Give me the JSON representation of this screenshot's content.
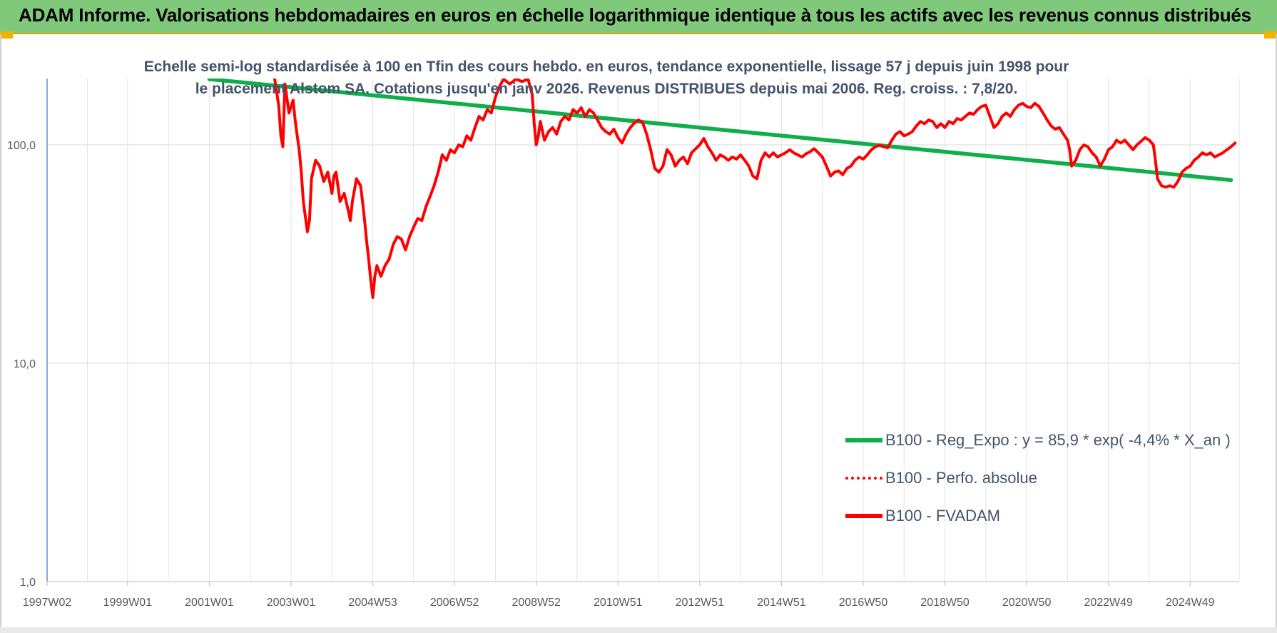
{
  "header": {
    "title": "ADAM Informe. Valorisations hebdomadaires en euros en échelle logarithmique identique à tous les actifs avec les revenus connus distribués"
  },
  "colors": {
    "banner": "#80c97a",
    "accent": "#f0b400",
    "trend": "#0fae4b",
    "price": "#ff0000",
    "text": "#44546a"
  },
  "chart_data": {
    "type": "line",
    "title": "Echelle semi-log standardisée à 100 en Tfin des cours hebdo. en euros, tendance exponentielle, lissage 57 j depuis juin 1998 pour le placement Alstom SA. Cotations jusqu'en janv 2026. Revenus DISTRIBUES depuis mai 2006. Reg. croiss. : 7,8/20.",
    "y_scale": "log",
    "ylim": [
      1,
      200
    ],
    "xlim": [
      1997.03,
      2026.2
    ],
    "y_ticks": [
      {
        "value": 1,
        "label": "1,0"
      },
      {
        "value": 10,
        "label": "10,0"
      },
      {
        "value": 100,
        "label": "100,0"
      }
    ],
    "x_ticks": [
      {
        "value": 1997.03,
        "label": "1997W02"
      },
      {
        "value": 1999.0,
        "label": "1999W01"
      },
      {
        "value": 2001.0,
        "label": "2001W01"
      },
      {
        "value": 2003.0,
        "label": "2003W01"
      },
      {
        "value": 2005.0,
        "label": "2004W53"
      },
      {
        "value": 2007.0,
        "label": "2006W52"
      },
      {
        "value": 2009.0,
        "label": "2008W52"
      },
      {
        "value": 2011.0,
        "label": "2010W51"
      },
      {
        "value": 2013.0,
        "label": "2012W51"
      },
      {
        "value": 2015.0,
        "label": "2014W51"
      },
      {
        "value": 2017.0,
        "label": "2016W50"
      },
      {
        "value": 2019.0,
        "label": "2018W50"
      },
      {
        "value": 2021.0,
        "label": "2020W50"
      },
      {
        "value": 2023.0,
        "label": "2022W49"
      },
      {
        "value": 2025.0,
        "label": "2024W49"
      }
    ],
    "grid": true,
    "legend_position": "bottom-right",
    "series": [
      {
        "name": "B100 - Reg_Expo : y = 85,9 * exp( -4,4% *  X_an )",
        "style": "solid",
        "color": "#0fae4b",
        "points": [
          [
            2001.0,
            200
          ],
          [
            2026.0,
            69
          ]
        ]
      },
      {
        "name": "B100 - Perfo. absolue",
        "style": "dotted",
        "color": "#ff0000",
        "points": []
      },
      {
        "name": "B100 - FVADAM",
        "style": "solid",
        "color": "#ff0000",
        "points": [
          [
            2002.6,
            200
          ],
          [
            2002.7,
            150
          ],
          [
            2002.75,
            110
          ],
          [
            2002.8,
            98
          ],
          [
            2002.85,
            190
          ],
          [
            2002.95,
            140
          ],
          [
            2003.05,
            160
          ],
          [
            2003.1,
            130
          ],
          [
            2003.15,
            110
          ],
          [
            2003.2,
            95
          ],
          [
            2003.25,
            75
          ],
          [
            2003.3,
            55
          ],
          [
            2003.4,
            40
          ],
          [
            2003.45,
            45
          ],
          [
            2003.5,
            70
          ],
          [
            2003.6,
            85
          ],
          [
            2003.7,
            80
          ],
          [
            2003.8,
            68
          ],
          [
            2003.9,
            75
          ],
          [
            2004.0,
            60
          ],
          [
            2004.05,
            72
          ],
          [
            2004.1,
            75
          ],
          [
            2004.2,
            55
          ],
          [
            2004.3,
            60
          ],
          [
            2004.4,
            50
          ],
          [
            2004.45,
            45
          ],
          [
            2004.5,
            55
          ],
          [
            2004.55,
            62
          ],
          [
            2004.6,
            70
          ],
          [
            2004.7,
            65
          ],
          [
            2004.75,
            55
          ],
          [
            2004.8,
            45
          ],
          [
            2004.85,
            36
          ],
          [
            2004.9,
            30
          ],
          [
            2004.95,
            24
          ],
          [
            2005.0,
            20
          ],
          [
            2005.05,
            25
          ],
          [
            2005.1,
            28
          ],
          [
            2005.2,
            25
          ],
          [
            2005.3,
            28
          ],
          [
            2005.4,
            30
          ],
          [
            2005.5,
            35
          ],
          [
            2005.6,
            38
          ],
          [
            2005.7,
            37
          ],
          [
            2005.8,
            33
          ],
          [
            2005.9,
            38
          ],
          [
            2006.0,
            42
          ],
          [
            2006.1,
            46
          ],
          [
            2006.2,
            45
          ],
          [
            2006.3,
            52
          ],
          [
            2006.4,
            58
          ],
          [
            2006.5,
            65
          ],
          [
            2006.6,
            75
          ],
          [
            2006.7,
            90
          ],
          [
            2006.8,
            85
          ],
          [
            2006.9,
            95
          ],
          [
            2007.0,
            92
          ],
          [
            2007.1,
            100
          ],
          [
            2007.2,
            98
          ],
          [
            2007.3,
            110
          ],
          [
            2007.4,
            105
          ],
          [
            2007.5,
            120
          ],
          [
            2007.6,
            135
          ],
          [
            2007.7,
            130
          ],
          [
            2007.8,
            145
          ],
          [
            2007.9,
            140
          ],
          [
            2008.0,
            165
          ],
          [
            2008.1,
            185
          ],
          [
            2008.2,
            200
          ],
          [
            2008.35,
            190
          ],
          [
            2008.5,
            200
          ],
          [
            2008.65,
            195
          ],
          [
            2008.8,
            200
          ],
          [
            2008.9,
            170
          ],
          [
            2008.95,
            125
          ],
          [
            2009.0,
            100
          ],
          [
            2009.05,
            110
          ],
          [
            2009.1,
            128
          ],
          [
            2009.2,
            105
          ],
          [
            2009.3,
            115
          ],
          [
            2009.4,
            120
          ],
          [
            2009.5,
            112
          ],
          [
            2009.6,
            128
          ],
          [
            2009.7,
            135
          ],
          [
            2009.8,
            130
          ],
          [
            2009.9,
            145
          ],
          [
            2010.0,
            140
          ],
          [
            2010.1,
            148
          ],
          [
            2010.2,
            135
          ],
          [
            2010.3,
            145
          ],
          [
            2010.4,
            140
          ],
          [
            2010.5,
            130
          ],
          [
            2010.6,
            120
          ],
          [
            2010.7,
            115
          ],
          [
            2010.8,
            112
          ],
          [
            2010.9,
            118
          ],
          [
            2011.0,
            108
          ],
          [
            2011.1,
            102
          ],
          [
            2011.2,
            112
          ],
          [
            2011.3,
            120
          ],
          [
            2011.4,
            126
          ],
          [
            2011.5,
            130
          ],
          [
            2011.6,
            127
          ],
          [
            2011.7,
            112
          ],
          [
            2011.8,
            95
          ],
          [
            2011.9,
            78
          ],
          [
            2012.0,
            75
          ],
          [
            2012.1,
            80
          ],
          [
            2012.2,
            95
          ],
          [
            2012.3,
            90
          ],
          [
            2012.4,
            80
          ],
          [
            2012.5,
            85
          ],
          [
            2012.6,
            88
          ],
          [
            2012.7,
            82
          ],
          [
            2012.8,
            92
          ],
          [
            2012.9,
            96
          ],
          [
            2013.0,
            100
          ],
          [
            2013.1,
            107
          ],
          [
            2013.2,
            98
          ],
          [
            2013.3,
            92
          ],
          [
            2013.4,
            85
          ],
          [
            2013.5,
            90
          ],
          [
            2013.6,
            88
          ],
          [
            2013.7,
            85
          ],
          [
            2013.8,
            88
          ],
          [
            2013.9,
            86
          ],
          [
            2014.0,
            90
          ],
          [
            2014.1,
            85
          ],
          [
            2014.2,
            80
          ],
          [
            2014.3,
            72
          ],
          [
            2014.4,
            70
          ],
          [
            2014.5,
            85
          ],
          [
            2014.6,
            92
          ],
          [
            2014.7,
            88
          ],
          [
            2014.8,
            92
          ],
          [
            2014.9,
            88
          ],
          [
            2015.0,
            90
          ],
          [
            2015.1,
            92
          ],
          [
            2015.2,
            95
          ],
          [
            2015.3,
            92
          ],
          [
            2015.4,
            90
          ],
          [
            2015.5,
            88
          ],
          [
            2015.6,
            91
          ],
          [
            2015.7,
            93
          ],
          [
            2015.8,
            96
          ],
          [
            2015.9,
            92
          ],
          [
            2016.0,
            88
          ],
          [
            2016.1,
            80
          ],
          [
            2016.2,
            72
          ],
          [
            2016.3,
            75
          ],
          [
            2016.4,
            76
          ],
          [
            2016.5,
            73
          ],
          [
            2016.6,
            78
          ],
          [
            2016.7,
            80
          ],
          [
            2016.8,
            85
          ],
          [
            2016.9,
            88
          ],
          [
            2017.0,
            86
          ],
          [
            2017.1,
            90
          ],
          [
            2017.2,
            95
          ],
          [
            2017.3,
            98
          ],
          [
            2017.4,
            100
          ],
          [
            2017.5,
            98
          ],
          [
            2017.6,
            97
          ],
          [
            2017.7,
            105
          ],
          [
            2017.8,
            112
          ],
          [
            2017.9,
            115
          ],
          [
            2018.0,
            110
          ],
          [
            2018.1,
            112
          ],
          [
            2018.2,
            115
          ],
          [
            2018.3,
            122
          ],
          [
            2018.4,
            128
          ],
          [
            2018.5,
            125
          ],
          [
            2018.6,
            130
          ],
          [
            2018.7,
            128
          ],
          [
            2018.8,
            120
          ],
          [
            2018.9,
            125
          ],
          [
            2019.0,
            120
          ],
          [
            2019.1,
            128
          ],
          [
            2019.2,
            125
          ],
          [
            2019.3,
            132
          ],
          [
            2019.4,
            130
          ],
          [
            2019.5,
            135
          ],
          [
            2019.6,
            140
          ],
          [
            2019.7,
            138
          ],
          [
            2019.8,
            145
          ],
          [
            2019.9,
            150
          ],
          [
            2020.0,
            152
          ],
          [
            2020.1,
            135
          ],
          [
            2020.2,
            120
          ],
          [
            2020.3,
            125
          ],
          [
            2020.4,
            135
          ],
          [
            2020.5,
            140
          ],
          [
            2020.6,
            135
          ],
          [
            2020.7,
            145
          ],
          [
            2020.8,
            152
          ],
          [
            2020.9,
            155
          ],
          [
            2021.0,
            150
          ],
          [
            2021.1,
            148
          ],
          [
            2021.2,
            155
          ],
          [
            2021.3,
            150
          ],
          [
            2021.4,
            140
          ],
          [
            2021.5,
            130
          ],
          [
            2021.6,
            122
          ],
          [
            2021.7,
            118
          ],
          [
            2021.8,
            120
          ],
          [
            2021.9,
            112
          ],
          [
            2022.0,
            105
          ],
          [
            2022.05,
            95
          ],
          [
            2022.1,
            80
          ],
          [
            2022.2,
            85
          ],
          [
            2022.3,
            95
          ],
          [
            2022.4,
            100
          ],
          [
            2022.5,
            98
          ],
          [
            2022.6,
            92
          ],
          [
            2022.7,
            88
          ],
          [
            2022.75,
            84
          ],
          [
            2022.8,
            80
          ],
          [
            2022.9,
            86
          ],
          [
            2023.0,
            95
          ],
          [
            2023.1,
            98
          ],
          [
            2023.2,
            105
          ],
          [
            2023.3,
            102
          ],
          [
            2023.4,
            105
          ],
          [
            2023.5,
            100
          ],
          [
            2023.6,
            95
          ],
          [
            2023.7,
            100
          ],
          [
            2023.8,
            104
          ],
          [
            2023.9,
            108
          ],
          [
            2024.0,
            105
          ],
          [
            2024.1,
            100
          ],
          [
            2024.15,
            85
          ],
          [
            2024.2,
            70
          ],
          [
            2024.3,
            65
          ],
          [
            2024.4,
            64
          ],
          [
            2024.5,
            65
          ],
          [
            2024.6,
            64
          ],
          [
            2024.7,
            68
          ],
          [
            2024.8,
            75
          ],
          [
            2024.9,
            78
          ],
          [
            2025.0,
            80
          ],
          [
            2025.1,
            85
          ],
          [
            2025.2,
            88
          ],
          [
            2025.3,
            92
          ],
          [
            2025.4,
            90
          ],
          [
            2025.5,
            92
          ],
          [
            2025.6,
            88
          ],
          [
            2025.7,
            90
          ],
          [
            2025.8,
            92
          ],
          [
            2025.9,
            95
          ],
          [
            2026.0,
            98
          ],
          [
            2026.1,
            102
          ]
        ]
      }
    ]
  }
}
